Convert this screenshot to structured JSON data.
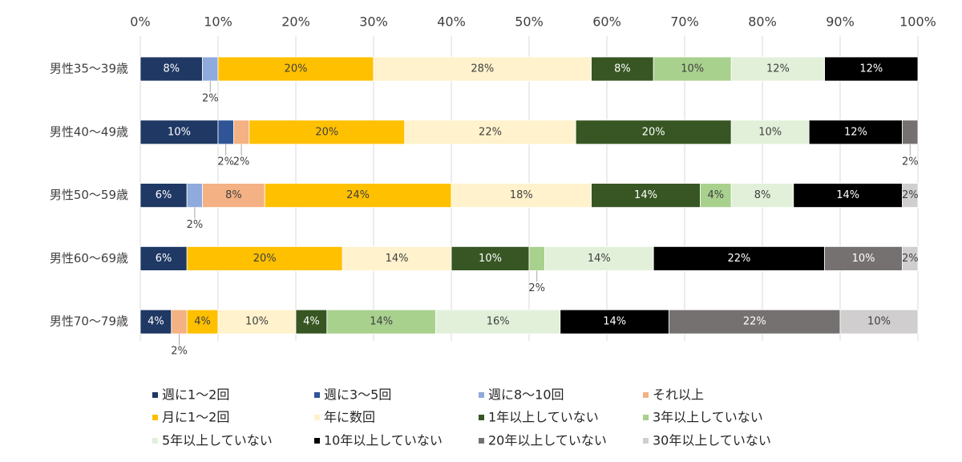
{
  "chart_data": {
    "type": "stacked-bar-horizontal",
    "categories": [
      "男性35～39歳",
      "男性40～49歳",
      "男性50～59歳",
      "男性60～69歳",
      "男性70～79歳"
    ],
    "xlim": [
      0,
      100
    ],
    "xticks": [
      {
        "value": 0,
        "label": "0%"
      },
      {
        "value": 10,
        "label": "10%"
      },
      {
        "value": 20,
        "label": "20%"
      },
      {
        "value": 30,
        "label": "30%"
      },
      {
        "value": 40,
        "label": "40%"
      },
      {
        "value": 50,
        "label": "50%"
      },
      {
        "value": 60,
        "label": "60%"
      },
      {
        "value": 70,
        "label": "70%"
      },
      {
        "value": 80,
        "label": "80%"
      },
      {
        "value": 90,
        "label": "90%"
      },
      {
        "value": 100,
        "label": "100%"
      }
    ],
    "grid": true,
    "series": [
      {
        "name": "週に1～2回",
        "color": "#1f3864",
        "values": [
          8,
          10,
          6,
          6,
          4
        ],
        "value_labels": [
          "8%",
          "10%",
          "6%",
          "6%",
          "4%"
        ]
      },
      {
        "name": "週に3～5回",
        "color": "#2f5597",
        "values": [
          0,
          2,
          0,
          0,
          0
        ],
        "value_labels": [
          null,
          "2%",
          null,
          null,
          null
        ]
      },
      {
        "name": "週に8～10回",
        "color": "#8faadc",
        "values": [
          2,
          0,
          2,
          0,
          0
        ],
        "value_labels": [
          "2%",
          null,
          "2%",
          null,
          null
        ]
      },
      {
        "name": "それ以上",
        "color": "#f4b183",
        "values": [
          0,
          2,
          8,
          0,
          2
        ],
        "value_labels": [
          null,
          "2%",
          "8%",
          null,
          "2%"
        ]
      },
      {
        "name": "月に1～2回",
        "color": "#ffc000",
        "values": [
          20,
          20,
          24,
          20,
          4
        ],
        "value_labels": [
          "20%",
          "20%",
          "24%",
          "20%",
          "4%"
        ]
      },
      {
        "name": "年に数回",
        "color": "#fff2cc",
        "values": [
          28,
          22,
          18,
          14,
          10
        ],
        "value_labels": [
          "28%",
          "22%",
          "18%",
          "14%",
          "10%"
        ]
      },
      {
        "name": "1年以上していない",
        "color": "#375623",
        "values": [
          8,
          20,
          14,
          10,
          4
        ],
        "value_labels": [
          "8%",
          "20%",
          "14%",
          "10%",
          "4%"
        ]
      },
      {
        "name": "3年以上していない",
        "color": "#a9d18e",
        "values": [
          10,
          0,
          4,
          2,
          14
        ],
        "value_labels": [
          "10%",
          null,
          "4%",
          "2%",
          "14%"
        ]
      },
      {
        "name": "5年以上していない",
        "color": "#e2f0d9",
        "values": [
          12,
          10,
          8,
          14,
          16
        ],
        "value_labels": [
          "12%",
          "10%",
          "8%",
          "14%",
          "16%"
        ]
      },
      {
        "name": "10年以上していない",
        "color": "#000000",
        "values": [
          12,
          12,
          14,
          22,
          14
        ],
        "value_labels": [
          "12%",
          "12%",
          "14%",
          "22%",
          "14%"
        ]
      },
      {
        "name": "20年以上していない",
        "color": "#767171",
        "values": [
          0,
          2,
          0,
          10,
          22
        ],
        "value_labels": [
          null,
          "2%",
          null,
          "10%",
          "22%"
        ]
      },
      {
        "name": "30年以上していない",
        "color": "#d0cece",
        "values": [
          0,
          0,
          2,
          2,
          10
        ],
        "value_labels": [
          null,
          null,
          "2%",
          "2%",
          "10%"
        ]
      }
    ]
  }
}
